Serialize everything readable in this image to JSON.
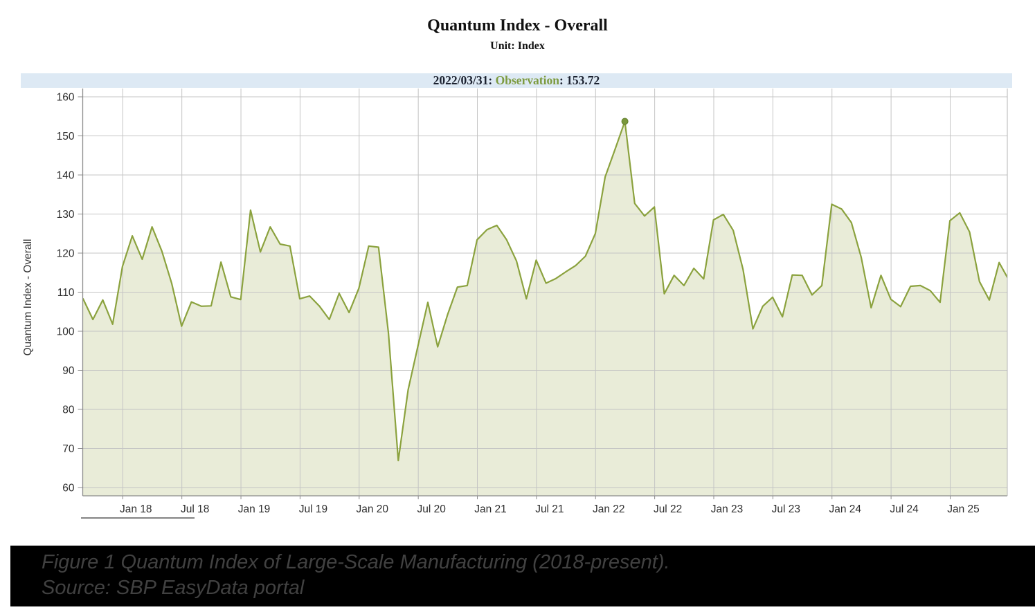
{
  "header": {
    "title": "Quantum Index - Overall",
    "subtitle": "Unit: Index"
  },
  "observation_bar": {
    "date_part": "2022/03/31: ",
    "label_part": "Observation",
    "value_part": ": 153.72",
    "bg_color": "#dde9f4",
    "label_color": "#7d9b3f",
    "text_color": "#1c2230"
  },
  "caption": {
    "line1": "Figure 1 Quantum Index of Large-Scale Manufacturing (2018-present).",
    "line2": "Source: SBP EasyData portal"
  },
  "chart_data": {
    "type": "area",
    "title": "Quantum Index - Overall",
    "unit": "Index",
    "y_axis_title": "Quantum Index - Overall",
    "ylim": [
      60,
      160
    ],
    "y_ticks": [
      60,
      70,
      80,
      90,
      100,
      110,
      120,
      130,
      140,
      150,
      160
    ],
    "x_tick_labels": [
      "Jan 18",
      "Jul 18",
      "Jan 19",
      "Jul 19",
      "Jan 20",
      "Jul 20",
      "Jan 21",
      "Jul 21",
      "Jan 22",
      "Jul 22",
      "Jan 23",
      "Jul 23",
      "Jan 24",
      "Jul 24",
      "Jan 25"
    ],
    "grid": true,
    "months": [
      "Aug 2017",
      "Sep 2017",
      "Oct 2017",
      "Nov 2017",
      "Dec 2017",
      "Jan 2018",
      "Feb 2018",
      "Mar 2018",
      "Apr 2018",
      "May 2018",
      "Jun 2018",
      "Jul 2018",
      "Aug 2018",
      "Sep 2018",
      "Oct 2018",
      "Nov 2018",
      "Dec 2018",
      "Jan 2019",
      "Feb 2019",
      "Mar 2019",
      "Apr 2019",
      "May 2019",
      "Jun 2019",
      "Jul 2019",
      "Aug 2019",
      "Sep 2019",
      "Oct 2019",
      "Nov 2019",
      "Dec 2019",
      "Jan 2020",
      "Feb 2020",
      "Mar 2020",
      "Apr 2020",
      "May 2020",
      "Jun 2020",
      "Jul 2020",
      "Aug 2020",
      "Sep 2020",
      "Oct 2020",
      "Nov 2020",
      "Dec 2020",
      "Jan 2021",
      "Feb 2021",
      "Mar 2021",
      "Apr 2021",
      "May 2021",
      "Jun 2021",
      "Jul 2021",
      "Aug 2021",
      "Sep 2021",
      "Oct 2021",
      "Nov 2021",
      "Dec 2021",
      "Jan 2022",
      "Feb 2022",
      "Mar 2022",
      "Apr 2022",
      "May 2022",
      "Jun 2022",
      "Jul 2022",
      "Aug 2022",
      "Sep 2022",
      "Oct 2022",
      "Nov 2022",
      "Dec 2022",
      "Jan 2023",
      "Feb 2023",
      "Mar 2023",
      "Apr 2023",
      "May 2023",
      "Jun 2023",
      "Jul 2023",
      "Aug 2023",
      "Sep 2023",
      "Oct 2023",
      "Nov 2023",
      "Dec 2023",
      "Jan 2024",
      "Feb 2024",
      "Mar 2024",
      "Apr 2024",
      "May 2024",
      "Jun 2024",
      "Jul 2024",
      "Aug 2024",
      "Sep 2024",
      "Oct 2024",
      "Nov 2024",
      "Dec 2024",
      "Jan 2025",
      "Feb 2025",
      "Mar 2025",
      "Apr 2025",
      "May 2025",
      "Jun 2025"
    ],
    "values": [
      108.3,
      103.0,
      108.0,
      101.8,
      116.6,
      124.4,
      118.4,
      126.7,
      120.5,
      112.2,
      101.3,
      107.5,
      106.4,
      106.5,
      117.7,
      108.8,
      108.1,
      131.0,
      120.3,
      126.7,
      122.3,
      121.8,
      108.3,
      109.0,
      106.4,
      103.0,
      109.7,
      104.8,
      111.0,
      121.8,
      121.5,
      99.5,
      66.9,
      85.0,
      96.3,
      107.4,
      96.0,
      104.2,
      111.3,
      111.7,
      123.4,
      126.0,
      127.1,
      123.4,
      118.0,
      108.3,
      118.2,
      112.3,
      113.5,
      115.2,
      116.8,
      119.2,
      125.0,
      139.5,
      146.5,
      153.72,
      132.7,
      129.5,
      131.8,
      109.6,
      114.3,
      111.7,
      116.1,
      113.4,
      128.5,
      129.9,
      125.8,
      115.8,
      100.6,
      106.4,
      108.7,
      103.7,
      114.4,
      114.3,
      109.3,
      111.7,
      132.5,
      131.3,
      127.8,
      118.9,
      106.0,
      114.3,
      108.2,
      106.3,
      111.5,
      111.7,
      110.4,
      107.4,
      128.3,
      130.3,
      125.4,
      112.7,
      108.0,
      117.6,
      113.0
    ],
    "marker": {
      "month": "Mar 2022",
      "date": "2022/03/31",
      "value": 153.72,
      "index": 55
    },
    "colors": {
      "line": "#8ba23e",
      "area_fill": "#e9ecd8",
      "marker_dot": "#7a993b",
      "marker_dot_stroke": "#5f7a2a",
      "grid": "#c4c4c4",
      "axis": "#8c8c8c",
      "tick_text": "#2f2f2f"
    }
  }
}
